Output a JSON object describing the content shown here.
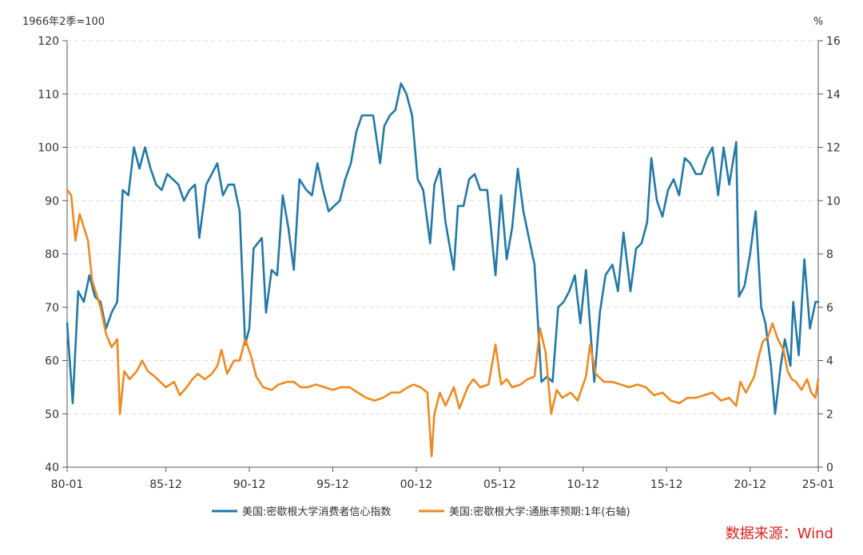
{
  "chart_data": {
    "type": "line",
    "left_axis_unit": "1966年2季=100",
    "right_axis_unit": "%",
    "left_axis": {
      "ylim": [
        40,
        120
      ],
      "ticks": [
        40,
        50,
        60,
        70,
        80,
        90,
        100,
        110,
        120
      ]
    },
    "right_axis": {
      "ylim": [
        0,
        16
      ],
      "ticks": [
        0,
        2,
        4,
        6,
        8,
        10,
        12,
        14,
        16
      ]
    },
    "x_axis": {
      "range": [
        "1980-01",
        "2025-01"
      ],
      "tick_labels": [
        "80-01",
        "85-12",
        "90-12",
        "95-12",
        "00-12",
        "05-12",
        "10-12",
        "15-12",
        "20-12",
        "25-01"
      ]
    },
    "grid": true,
    "legend_position": "bottom-center",
    "series": [
      {
        "name": "美国:密歇根大学消费者信心指数",
        "axis": "left",
        "color": "#2279a8",
        "points": [
          [
            "1980-01",
            67.0
          ],
          [
            "1980-05",
            52.0
          ],
          [
            "1980-09",
            73.0
          ],
          [
            "1981-01",
            71.0
          ],
          [
            "1981-05",
            76.0
          ],
          [
            "1981-09",
            72.0
          ],
          [
            "1982-01",
            71.0
          ],
          [
            "1982-05",
            66.0
          ],
          [
            "1982-09",
            69.0
          ],
          [
            "1983-01",
            71.0
          ],
          [
            "1983-05",
            92.0
          ],
          [
            "1983-09",
            91.0
          ],
          [
            "1984-01",
            100.0
          ],
          [
            "1984-05",
            96.0
          ],
          [
            "1984-09",
            100.0
          ],
          [
            "1985-01",
            96.0
          ],
          [
            "1985-05",
            93.0
          ],
          [
            "1985-09",
            92.0
          ],
          [
            "1986-01",
            95.0
          ],
          [
            "1986-05",
            94.0
          ],
          [
            "1986-09",
            93.0
          ],
          [
            "1987-01",
            90.0
          ],
          [
            "1987-05",
            92.0
          ],
          [
            "1987-09",
            93.0
          ],
          [
            "1987-12",
            83.0
          ],
          [
            "1988-05",
            93.0
          ],
          [
            "1988-09",
            95.0
          ],
          [
            "1989-01",
            97.0
          ],
          [
            "1989-05",
            91.0
          ],
          [
            "1989-09",
            93.0
          ],
          [
            "1990-01",
            93.0
          ],
          [
            "1990-05",
            88.0
          ],
          [
            "1990-09",
            63.0
          ],
          [
            "1990-12",
            66.0
          ],
          [
            "1991-03",
            81.0
          ],
          [
            "1991-06",
            82.0
          ],
          [
            "1991-09",
            83.0
          ],
          [
            "1991-12",
            69.0
          ],
          [
            "1992-04",
            77.0
          ],
          [
            "1992-08",
            76.0
          ],
          [
            "1992-12",
            91.0
          ],
          [
            "1993-04",
            85.0
          ],
          [
            "1993-08",
            77.0
          ],
          [
            "1993-12",
            94.0
          ],
          [
            "1994-05",
            92.0
          ],
          [
            "1994-09",
            91.0
          ],
          [
            "1995-01",
            97.0
          ],
          [
            "1995-05",
            92.0
          ],
          [
            "1995-09",
            88.0
          ],
          [
            "1996-01",
            89.0
          ],
          [
            "1996-05",
            90.0
          ],
          [
            "1996-09",
            94.0
          ],
          [
            "1997-01",
            97.0
          ],
          [
            "1997-05",
            103.0
          ],
          [
            "1997-09",
            106.0
          ],
          [
            "1998-01",
            106.0
          ],
          [
            "1998-05",
            106.0
          ],
          [
            "1998-10",
            97.0
          ],
          [
            "1999-01",
            104.0
          ],
          [
            "1999-05",
            106.0
          ],
          [
            "1999-09",
            107.0
          ],
          [
            "2000-01",
            112.0
          ],
          [
            "2000-05",
            110.0
          ],
          [
            "2000-09",
            106.0
          ],
          [
            "2001-01",
            94.0
          ],
          [
            "2001-05",
            92.0
          ],
          [
            "2001-10",
            82.0
          ],
          [
            "2002-01",
            93.0
          ],
          [
            "2002-05",
            96.0
          ],
          [
            "2002-09",
            86.0
          ],
          [
            "2003-03",
            77.0
          ],
          [
            "2003-06",
            89.0
          ],
          [
            "2003-10",
            89.0
          ],
          [
            "2004-02",
            94.0
          ],
          [
            "2004-06",
            95.0
          ],
          [
            "2004-10",
            92.0
          ],
          [
            "2005-03",
            92.0
          ],
          [
            "2005-09",
            76.0
          ],
          [
            "2006-01",
            91.0
          ],
          [
            "2006-05",
            79.0
          ],
          [
            "2006-09",
            85.0
          ],
          [
            "2007-01",
            96.0
          ],
          [
            "2007-05",
            88.0
          ],
          [
            "2007-09",
            83.0
          ],
          [
            "2008-01",
            78.0
          ],
          [
            "2008-06",
            56.0
          ],
          [
            "2008-10",
            57.0
          ],
          [
            "2009-02",
            56.0
          ],
          [
            "2009-06",
            70.0
          ],
          [
            "2009-10",
            71.0
          ],
          [
            "2010-02",
            73.0
          ],
          [
            "2010-06",
            76.0
          ],
          [
            "2010-10",
            67.0
          ],
          [
            "2011-02",
            77.0
          ],
          [
            "2011-08",
            56.0
          ],
          [
            "2011-12",
            69.0
          ],
          [
            "2012-04",
            76.0
          ],
          [
            "2012-09",
            78.0
          ],
          [
            "2013-01",
            73.0
          ],
          [
            "2013-05",
            84.0
          ],
          [
            "2013-10",
            73.0
          ],
          [
            "2014-02",
            81.0
          ],
          [
            "2014-06",
            82.0
          ],
          [
            "2014-10",
            86.0
          ],
          [
            "2015-01",
            98.0
          ],
          [
            "2015-05",
            90.0
          ],
          [
            "2015-09",
            87.0
          ],
          [
            "2016-01",
            92.0
          ],
          [
            "2016-05",
            94.0
          ],
          [
            "2016-09",
            91.0
          ],
          [
            "2017-01",
            98.0
          ],
          [
            "2017-05",
            97.0
          ],
          [
            "2017-09",
            95.0
          ],
          [
            "2018-01",
            95.0
          ],
          [
            "2018-05",
            98.0
          ],
          [
            "2018-09",
            100.0
          ],
          [
            "2019-01",
            91.0
          ],
          [
            "2019-05",
            100.0
          ],
          [
            "2019-09",
            93.0
          ],
          [
            "2020-02",
            101.0
          ],
          [
            "2020-04",
            72.0
          ],
          [
            "2020-08",
            74.0
          ],
          [
            "2020-12",
            80.0
          ],
          [
            "2021-04",
            88.0
          ],
          [
            "2021-08",
            70.0
          ],
          [
            "2021-11",
            67.0
          ],
          [
            "2022-03",
            59.0
          ],
          [
            "2022-06",
            50.0
          ],
          [
            "2022-10",
            59.0
          ],
          [
            "2023-01",
            64.0
          ],
          [
            "2023-05",
            59.0
          ],
          [
            "2023-07",
            71.0
          ],
          [
            "2023-11",
            61.0
          ],
          [
            "2024-03",
            79.0
          ],
          [
            "2024-07",
            66.0
          ],
          [
            "2024-11",
            71.0
          ],
          [
            "2025-01",
            71.0
          ]
        ]
      },
      {
        "name": "美国:密歇根大学:通胀率预期:1年(右轴)",
        "axis": "right",
        "color": "#f0891f",
        "points": [
          [
            "1980-01",
            10.4
          ],
          [
            "1980-04",
            10.2
          ],
          [
            "1980-07",
            8.5
          ],
          [
            "1980-10",
            9.5
          ],
          [
            "1981-01",
            9.0
          ],
          [
            "1981-04",
            8.5
          ],
          [
            "1981-07",
            7.0
          ],
          [
            "1981-10",
            6.5
          ],
          [
            "1982-01",
            6.0
          ],
          [
            "1982-05",
            5.0
          ],
          [
            "1982-09",
            4.5
          ],
          [
            "1983-01",
            4.8
          ],
          [
            "1983-03",
            2.0
          ],
          [
            "1983-06",
            3.6
          ],
          [
            "1983-10",
            3.3
          ],
          [
            "1984-03",
            3.6
          ],
          [
            "1984-07",
            4.0
          ],
          [
            "1984-11",
            3.6
          ],
          [
            "1985-04",
            3.4
          ],
          [
            "1985-08",
            3.2
          ],
          [
            "1985-12",
            3.0
          ],
          [
            "1986-06",
            3.2
          ],
          [
            "1986-10",
            2.7
          ],
          [
            "1987-03",
            3.0
          ],
          [
            "1987-07",
            3.3
          ],
          [
            "1987-11",
            3.5
          ],
          [
            "1988-04",
            3.3
          ],
          [
            "1988-09",
            3.5
          ],
          [
            "1989-01",
            3.8
          ],
          [
            "1989-04",
            4.4
          ],
          [
            "1989-08",
            3.5
          ],
          [
            "1990-01",
            4.0
          ],
          [
            "1990-05",
            4.0
          ],
          [
            "1990-09",
            4.8
          ],
          [
            "1991-01",
            4.2
          ],
          [
            "1991-05",
            3.4
          ],
          [
            "1991-10",
            3.0
          ],
          [
            "1992-04",
            2.9
          ],
          [
            "1992-09",
            3.1
          ],
          [
            "1993-03",
            3.2
          ],
          [
            "1993-08",
            3.2
          ],
          [
            "1994-01",
            3.0
          ],
          [
            "1994-06",
            3.0
          ],
          [
            "1994-12",
            3.1
          ],
          [
            "1995-06",
            3.0
          ],
          [
            "1995-12",
            2.9
          ],
          [
            "1996-06",
            3.0
          ],
          [
            "1996-12",
            3.0
          ],
          [
            "1997-06",
            2.8
          ],
          [
            "1997-12",
            2.6
          ],
          [
            "1998-06",
            2.5
          ],
          [
            "1998-12",
            2.6
          ],
          [
            "1999-06",
            2.8
          ],
          [
            "1999-12",
            2.8
          ],
          [
            "2000-06",
            3.0
          ],
          [
            "2000-10",
            3.1
          ],
          [
            "2001-03",
            3.0
          ],
          [
            "2001-08",
            2.8
          ],
          [
            "2001-11",
            0.4
          ],
          [
            "2002-01",
            2.0
          ],
          [
            "2002-05",
            2.8
          ],
          [
            "2002-09",
            2.3
          ],
          [
            "2003-03",
            3.0
          ],
          [
            "2003-07",
            2.2
          ],
          [
            "2004-01",
            3.0
          ],
          [
            "2004-05",
            3.3
          ],
          [
            "2004-10",
            3.0
          ],
          [
            "2005-04",
            3.1
          ],
          [
            "2005-09",
            4.6
          ],
          [
            "2006-01",
            3.1
          ],
          [
            "2006-05",
            3.3
          ],
          [
            "2006-09",
            3.0
          ],
          [
            "2007-03",
            3.1
          ],
          [
            "2007-08",
            3.3
          ],
          [
            "2008-01",
            3.4
          ],
          [
            "2008-05",
            5.2
          ],
          [
            "2008-09",
            4.3
          ],
          [
            "2009-01",
            2.0
          ],
          [
            "2009-05",
            2.9
          ],
          [
            "2009-09",
            2.6
          ],
          [
            "2010-03",
            2.8
          ],
          [
            "2010-08",
            2.5
          ],
          [
            "2011-02",
            3.4
          ],
          [
            "2011-05",
            4.6
          ],
          [
            "2011-09",
            3.5
          ],
          [
            "2012-03",
            3.2
          ],
          [
            "2012-09",
            3.2
          ],
          [
            "2013-03",
            3.1
          ],
          [
            "2013-09",
            3.0
          ],
          [
            "2014-03",
            3.1
          ],
          [
            "2014-09",
            3.0
          ],
          [
            "2015-03",
            2.7
          ],
          [
            "2015-09",
            2.8
          ],
          [
            "2016-03",
            2.5
          ],
          [
            "2016-09",
            2.4
          ],
          [
            "2017-03",
            2.6
          ],
          [
            "2017-09",
            2.6
          ],
          [
            "2018-03",
            2.7
          ],
          [
            "2018-09",
            2.8
          ],
          [
            "2019-03",
            2.5
          ],
          [
            "2019-09",
            2.6
          ],
          [
            "2020-02",
            2.3
          ],
          [
            "2020-05",
            3.2
          ],
          [
            "2020-09",
            2.8
          ],
          [
            "2021-03",
            3.4
          ],
          [
            "2021-06",
            4.1
          ],
          [
            "2021-09",
            4.7
          ],
          [
            "2022-01",
            4.9
          ],
          [
            "2022-04",
            5.4
          ],
          [
            "2022-08",
            4.8
          ],
          [
            "2022-12",
            4.4
          ],
          [
            "2023-03",
            3.6
          ],
          [
            "2023-06",
            3.3
          ],
          [
            "2023-09",
            3.2
          ],
          [
            "2024-01",
            2.9
          ],
          [
            "2024-05",
            3.3
          ],
          [
            "2024-08",
            2.8
          ],
          [
            "2024-11",
            2.6
          ],
          [
            "2025-01",
            3.3
          ]
        ]
      }
    ]
  },
  "source": "数据来源：Wind"
}
